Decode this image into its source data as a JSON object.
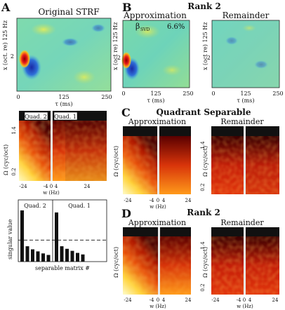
{
  "panel_a": {
    "letter": "A",
    "strf_title": "Original STRF",
    "strf_ylabel": "x (oct. re) 125 Hz",
    "strf_ytick": "2",
    "strf_xticks": [
      "0",
      "125",
      "250"
    ],
    "strf_xlabel": "τ (ms)",
    "quad_labels": [
      "Quad. 2",
      "Quad. 1"
    ],
    "spec_ylabel": "Ω (cyc/oct)",
    "spec_yticks": [
      "1.4",
      "0.2"
    ],
    "spec_xticks": [
      "-24",
      "-4",
      "0",
      "4",
      "24"
    ],
    "spec_xlabel": "w (Hz)",
    "sv_quad_labels": [
      "Quad. 2",
      "Quad. 1"
    ],
    "sv_ylabel": "singular value",
    "sv_xlabel": "separable matrix #"
  },
  "panel_b": {
    "letter": "B",
    "title": "Rank 2",
    "left_title": "Approximation",
    "right_title": "Remainder",
    "annotation_symbol": "β",
    "annotation_sub": "SVD",
    "annotation_value": "6.6%",
    "ylabel": "x (oct re) 125 Hz",
    "ytick": "2",
    "xticks": [
      "0",
      "125",
      "250"
    ],
    "xlabel": "τ (ms)"
  },
  "panel_c": {
    "letter": "C",
    "title": "Quadrant Separable",
    "left_title": "Approximation",
    "right_title": "Remainder",
    "ylabel": "Ω (cyc/oct)",
    "yticks": [
      "1.4",
      "0.2"
    ],
    "xticks": [
      "-24",
      "-4",
      "0",
      "4",
      "24"
    ],
    "xlabel": "w (Hz)"
  },
  "panel_d": {
    "letter": "D",
    "title": "Rank 2",
    "left_title": "Approximation",
    "right_title": "Remainder",
    "ylabel": "Ω (cyc/oct)",
    "yticks": [
      "1.4",
      "0.2"
    ],
    "xticks": [
      "-24",
      "-4",
      "0",
      "4",
      "24"
    ],
    "xlabel": "w (Hz)"
  },
  "singular_values": {
    "quad2": [
      1.0,
      0.3,
      0.24,
      0.2,
      0.16,
      0.13
    ],
    "quad1": [
      0.96,
      0.3,
      0.25,
      0.21,
      0.17,
      0.14
    ],
    "threshold": 0.42
  }
}
